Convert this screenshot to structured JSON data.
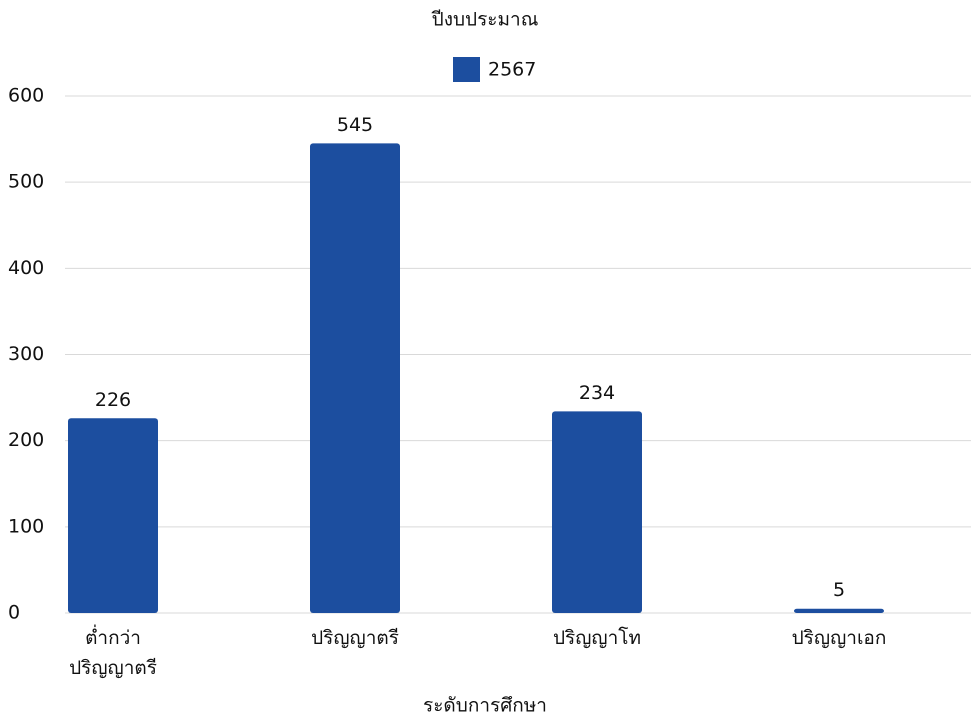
{
  "chart_data": {
    "type": "bar",
    "title": "ปีงบประมาณ",
    "x_label": "ระดับการศึกษา",
    "categories": [
      "ต่ำกว่า ปริญญาตรี",
      "ปริญญาตรี",
      "ปริญญาโท",
      "ปริญญาเอก"
    ],
    "series": [
      {
        "name": "2567",
        "color": "#1c4e9f",
        "values": [
          226,
          545,
          234,
          5
        ]
      }
    ],
    "ylim": [
      0,
      600
    ],
    "yticks": [
      0,
      100,
      200,
      300,
      400,
      500,
      600
    ],
    "grid": true,
    "legend": "top"
  }
}
